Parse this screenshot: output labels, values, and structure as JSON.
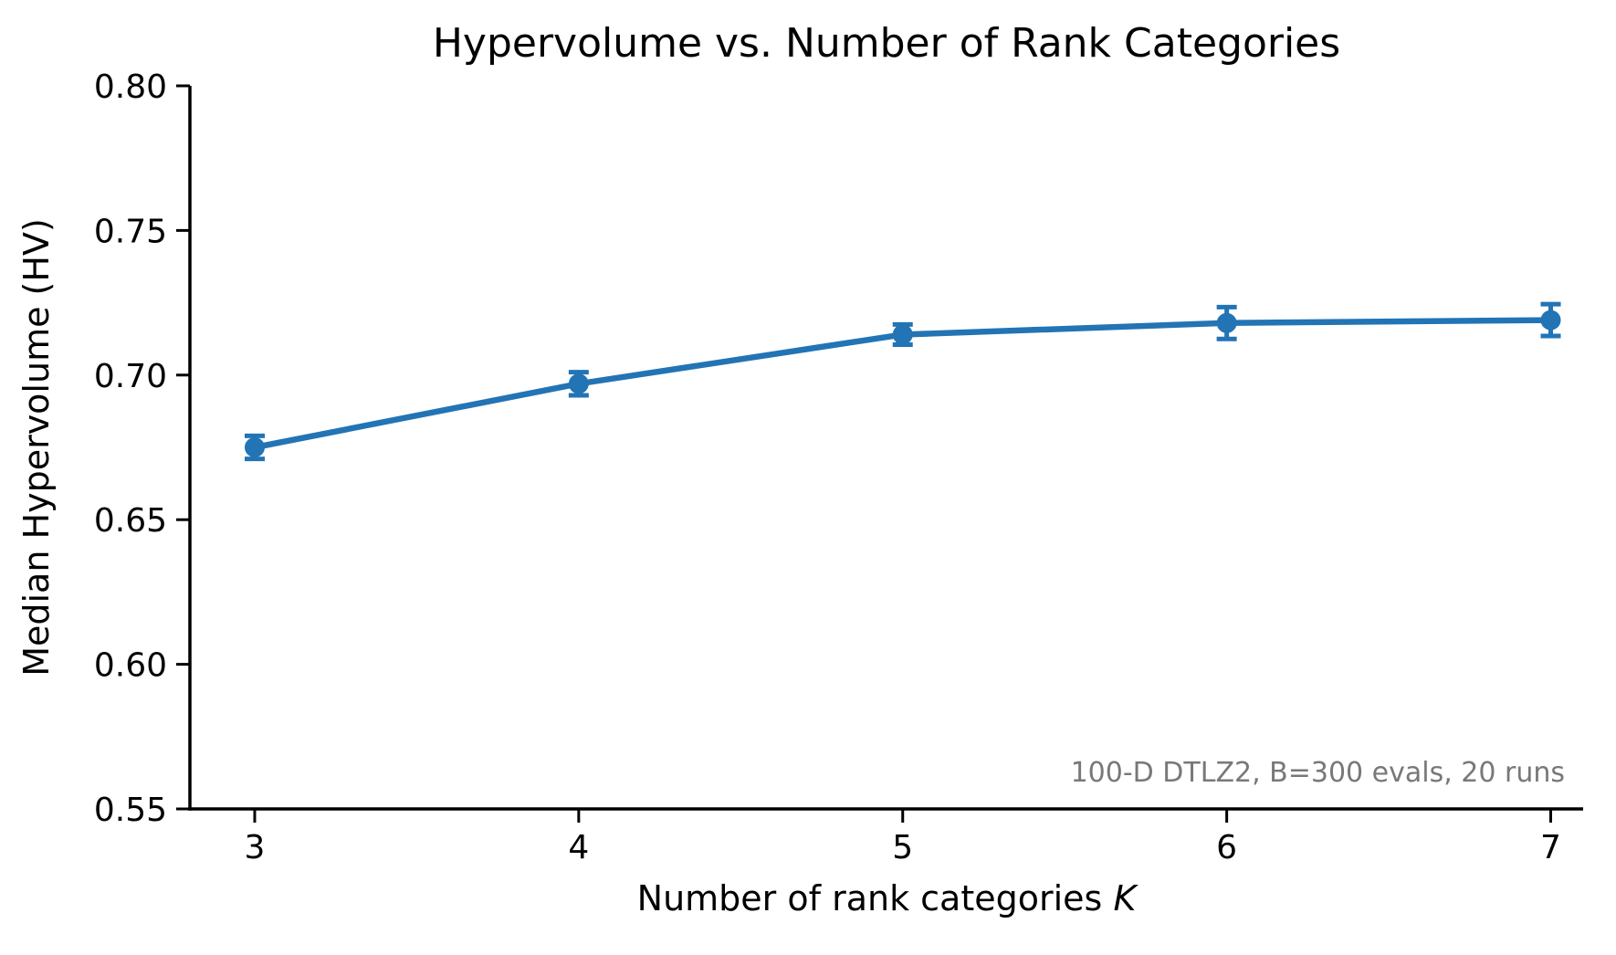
{
  "chart_data": {
    "type": "line",
    "title": "Hypervolume vs. Number of Rank Categories",
    "xlabel_text": "Number of rank categories",
    "xlabel_var": "K",
    "ylabel": "Median Hypervolume (HV)",
    "annotation": "100-D DTLZ2, B=300 evals, 20 runs",
    "x": [
      3,
      4,
      5,
      6,
      7
    ],
    "y": [
      0.675,
      0.697,
      0.714,
      0.718,
      0.719
    ],
    "yerr": [
      0.004,
      0.004,
      0.0035,
      0.0055,
      0.0055
    ],
    "xticks": [
      3,
      4,
      5,
      6,
      7
    ],
    "yticks": [
      0.55,
      0.6,
      0.65,
      0.7,
      0.75,
      0.8
    ],
    "xlim": [
      2.8,
      7.1
    ],
    "ylim": [
      0.55,
      0.8
    ],
    "grid": false,
    "legend": null,
    "line_color": "#2274b5",
    "axis_color": "#000000",
    "annotation_color": "#787878"
  }
}
